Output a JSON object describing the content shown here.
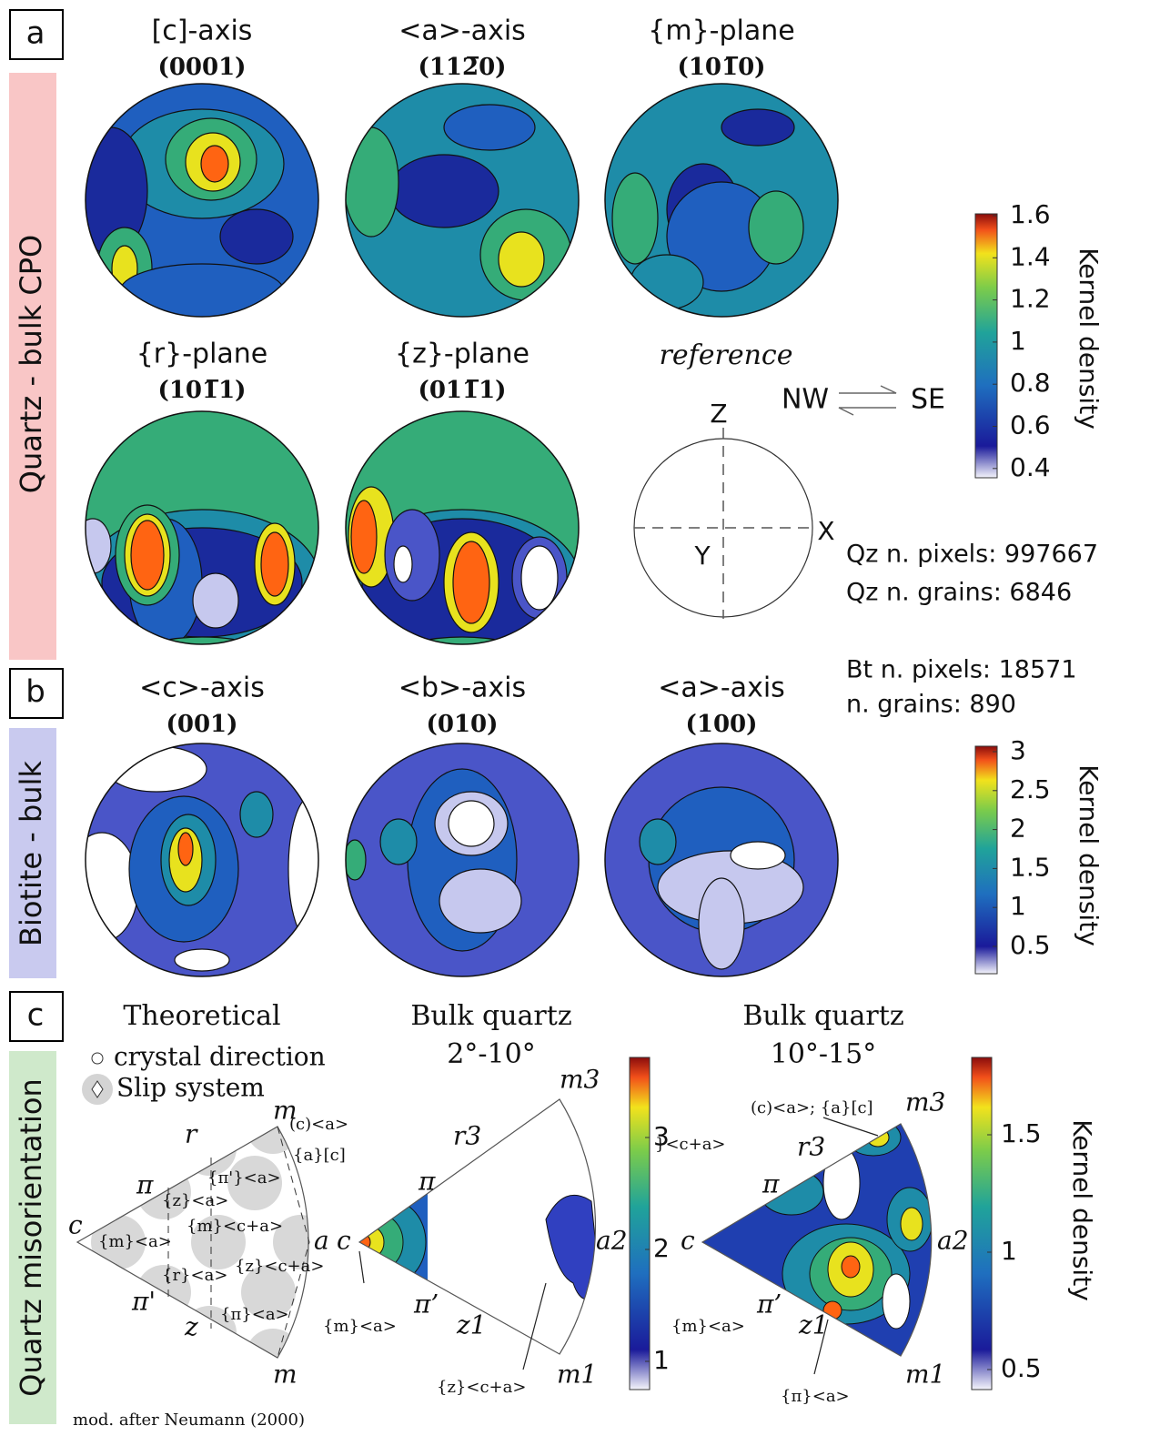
{
  "panel_a": {
    "label": "a",
    "side_label": "Quartz - bulk CPO",
    "plots": [
      {
        "title": "[c]-axis",
        "plane": "(0001)"
      },
      {
        "title": "<a>-axis",
        "plane": "(112̅0)"
      },
      {
        "title": "{m}-plane",
        "plane": "(101̅0)"
      },
      {
        "title": "{r}-plane",
        "plane": "(101̅1)"
      },
      {
        "title": "{z}-plane",
        "plane": "(011̅1)"
      }
    ],
    "reference": {
      "title": "reference",
      "shear_left": "NW",
      "shear_right": "SE",
      "z": "Z",
      "x": "X",
      "y": "Y"
    },
    "colorbar": {
      "ticks": [
        1.6,
        1.4,
        1.2,
        1,
        0.8,
        0.6,
        0.4
      ],
      "label": "Kernel density"
    },
    "stats": [
      "Qz n. pixels: 997667",
      "Qz n. grains: 6846"
    ]
  },
  "panel_b": {
    "label": "b",
    "side_label": "Biotite - bulk",
    "plots": [
      {
        "title": "<c>-axis",
        "plane": "(001)"
      },
      {
        "title": "<b>-axis",
        "plane": "(010)"
      },
      {
        "title": "<a>-axis",
        "plane": "(100)"
      }
    ],
    "colorbar": {
      "ticks": [
        3,
        2.5,
        2,
        1.5,
        1,
        0.5
      ],
      "label": "Kernel density"
    },
    "stats": [
      "Bt n. pixels: 18571",
      "n. grains: 890"
    ]
  },
  "panel_c": {
    "label": "c",
    "side_label": "Quartz misorientation",
    "theoretical": {
      "title": "Theoretical",
      "legend": [
        "crystal direction",
        "Slip system"
      ],
      "labels": [
        "m",
        "(c)<a>",
        "{a}[c]",
        "r",
        "{π'}<a>",
        "π",
        "{z}<a>",
        "{m}<c+a>",
        "c",
        "{m}<a>",
        "a",
        "{r}<a>",
        "{z}<c+a>",
        "π'",
        "z",
        "{π}<a>",
        "m"
      ],
      "source": "mod. after Neumann (2000)"
    },
    "low_angle": {
      "title": "Bulk quartz",
      "range": "2°-10°",
      "labels": [
        "m3",
        "r3",
        "π",
        "c",
        "a2",
        "π’",
        "z1",
        "m1",
        "{m}<a>",
        "{z}<c+a>",
        "}<c+a>"
      ],
      "colorbar": {
        "ticks": [
          3,
          2,
          1
        ]
      }
    },
    "high_angle": {
      "title": "Bulk quartz",
      "range": "10°-15°",
      "labels": [
        "(c)<a>; {a}[c]",
        "m3",
        "r3",
        "π",
        "c",
        "a2",
        "π’",
        "z1",
        "m1",
        "{m}<a>",
        "{π}<a>"
      ],
      "colorbar": {
        "ticks": [
          1.5,
          1,
          0.5
        ],
        "label": "Kernel density"
      }
    }
  }
}
